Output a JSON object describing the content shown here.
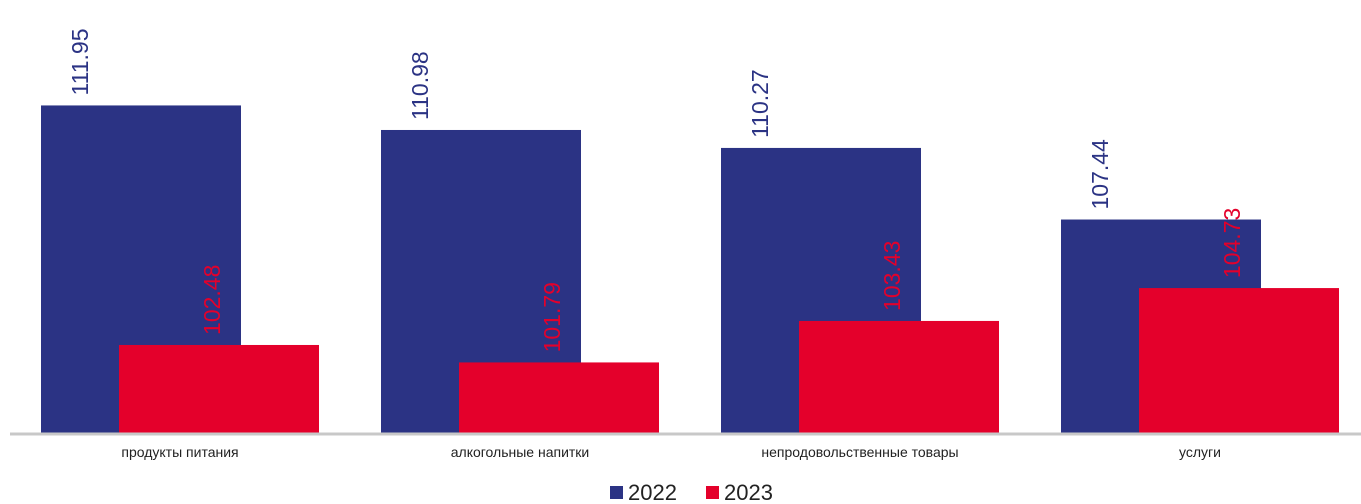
{
  "chart_data": {
    "type": "bar",
    "categories": [
      "продукты питания",
      "алкогольные напитки",
      "непродовольственные товары",
      "услуги"
    ],
    "series": [
      {
        "name": "2022",
        "color": "#2b3384",
        "values": [
          111.95,
          110.98,
          110.27,
          107.44
        ]
      },
      {
        "name": "2023",
        "color": "#e4002b",
        "values": [
          102.48,
          101.79,
          103.43,
          104.73
        ]
      }
    ],
    "ylim": [
      99,
      116
    ],
    "legend": "bottom"
  }
}
